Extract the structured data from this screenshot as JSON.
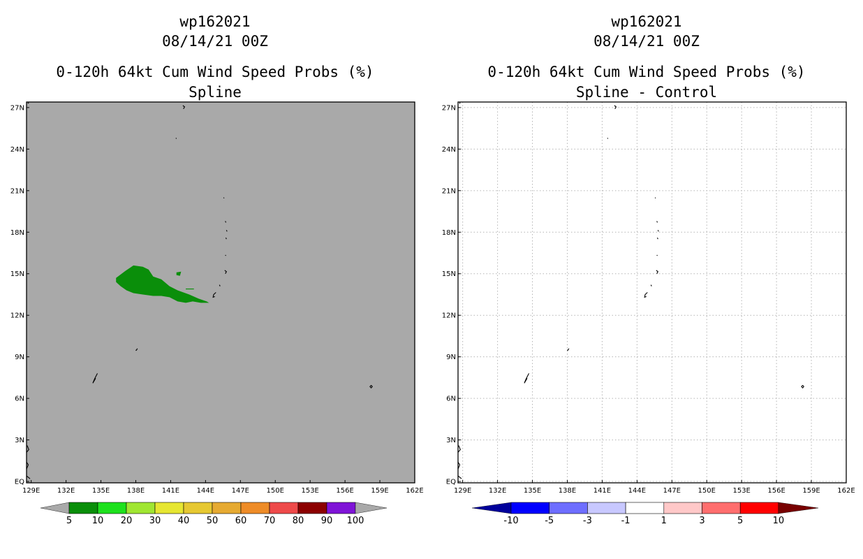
{
  "left_panel": {
    "storm_id": "wp162021",
    "datetime": "08/14/21 00Z",
    "product": "0-120h 64kt Cum Wind Speed Probs (%)",
    "subtitle": "Spline",
    "background": "#a9a9a9",
    "colorbar": {
      "labels": [
        "5",
        "10",
        "20",
        "30",
        "40",
        "50",
        "60",
        "70",
        "80",
        "90",
        "100"
      ],
      "colors": [
        "#0a8e0a",
        "#1ee11e",
        "#a0e632",
        "#e6e632",
        "#e6c832",
        "#e6aa32",
        "#ee8c28",
        "#ee4a4a",
        "#8c0000",
        "#7f14d7"
      ],
      "end_color": "#a9a9a9"
    }
  },
  "right_panel": {
    "storm_id": "wp162021",
    "datetime": "08/14/21 00Z",
    "product": "0-120h 64kt Cum Wind Speed Probs (%)",
    "subtitle": "Spline - Control",
    "background": "#ffffff",
    "colorbar": {
      "labels": [
        "-10",
        "-5",
        "-3",
        "-1",
        "1",
        "3",
        "5",
        "10"
      ],
      "colors": [
        "#0000ff",
        "#6e6eff",
        "#c8c8ff",
        "#ffffff",
        "#ffc8c8",
        "#ff6e6e",
        "#ff0000"
      ],
      "low_end_color": "#00009b",
      "high_end_color": "#780000"
    }
  },
  "lat_labels": [
    "27N",
    "24N",
    "21N",
    "18N",
    "15N",
    "12N",
    "9N",
    "6N",
    "3N",
    "EQ"
  ],
  "lat_values": [
    27,
    24,
    21,
    18,
    15,
    12,
    9,
    6,
    3,
    0
  ],
  "lon_labels": [
    "129E",
    "132E",
    "135E",
    "138E",
    "141E",
    "144E",
    "147E",
    "150E",
    "153E",
    "156E",
    "159E",
    "162E"
  ],
  "lon_values": [
    129,
    132,
    135,
    138,
    141,
    144,
    147,
    150,
    153,
    156,
    159,
    162
  ],
  "lon_range": [
    128.6,
    162
  ],
  "lat_range": [
    -0.1,
    27.4
  ],
  "prob_region": {
    "category": "5-10%",
    "color": "#0a8e0a",
    "outline": [
      [
        136.3,
        14.7
      ],
      [
        137.1,
        15.2
      ],
      [
        137.8,
        15.6
      ],
      [
        138.6,
        15.5
      ],
      [
        139.1,
        15.3
      ],
      [
        139.5,
        14.8
      ],
      [
        140.2,
        14.6
      ],
      [
        140.9,
        14.1
      ],
      [
        141.6,
        13.8
      ],
      [
        142.6,
        13.5
      ],
      [
        143.4,
        13.2
      ],
      [
        144.1,
        13.0
      ],
      [
        144.3,
        12.9
      ],
      [
        143.6,
        12.9
      ],
      [
        142.9,
        13.0
      ],
      [
        142.3,
        12.9
      ],
      [
        141.6,
        13.0
      ],
      [
        140.9,
        13.3
      ],
      [
        140.2,
        13.4
      ],
      [
        139.5,
        13.4
      ],
      [
        138.6,
        13.5
      ],
      [
        137.8,
        13.6
      ],
      [
        137.2,
        13.8
      ],
      [
        136.7,
        14.1
      ],
      [
        136.3,
        14.4
      ]
    ],
    "small_patch": [
      [
        141.5,
        15.1
      ],
      [
        141.9,
        15.15
      ],
      [
        141.8,
        14.85
      ],
      [
        141.5,
        14.9
      ]
    ]
  },
  "islands": [
    [
      [
        142.05,
        27.15
      ],
      [
        142.2,
        27.05
      ],
      [
        142.1,
        26.9
      ]
    ],
    [
      [
        141.45,
        24.8
      ],
      [
        141.5,
        24.75
      ]
    ],
    [
      [
        145.55,
        20.5
      ],
      [
        145.6,
        20.45
      ]
    ],
    [
      [
        145.7,
        18.8
      ],
      [
        145.75,
        18.7
      ]
    ],
    [
      [
        145.8,
        18.15
      ],
      [
        145.85,
        18.05
      ]
    ],
    [
      [
        145.75,
        17.6
      ],
      [
        145.8,
        17.5
      ]
    ],
    [
      [
        145.7,
        16.35
      ],
      [
        145.75,
        16.3
      ]
    ],
    [
      [
        145.65,
        15.25
      ],
      [
        145.8,
        15.15
      ],
      [
        145.7,
        15.0
      ]
    ],
    [
      [
        145.2,
        14.2
      ],
      [
        145.25,
        14.1
      ]
    ],
    [
      [
        144.9,
        13.65
      ],
      [
        144.7,
        13.5
      ],
      [
        144.65,
        13.3
      ],
      [
        144.8,
        13.35
      ]
    ],
    [
      [
        138.15,
        9.6
      ],
      [
        138.0,
        9.45
      ],
      [
        138.1,
        9.5
      ]
    ],
    [
      [
        134.7,
        7.8
      ],
      [
        134.45,
        7.4
      ],
      [
        134.3,
        7.1
      ],
      [
        134.55,
        7.45
      ]
    ],
    [
      [
        158.25,
        6.95
      ],
      [
        158.15,
        6.85
      ],
      [
        158.25,
        6.75
      ],
      [
        158.35,
        6.85
      ],
      [
        158.25,
        6.95
      ]
    ],
    [
      [
        128.7,
        27.3
      ],
      [
        128.8,
        27.35
      ]
    ],
    [
      [
        128.65,
        2.6
      ],
      [
        128.8,
        2.3
      ],
      [
        128.6,
        2.1
      ]
    ],
    [
      [
        128.6,
        1.4
      ],
      [
        128.75,
        1.2
      ],
      [
        128.6,
        0.9
      ]
    ],
    [
      [
        128.6,
        0.4
      ],
      [
        128.75,
        0.3
      ],
      [
        128.9,
        0.2
      ]
    ]
  ]
}
